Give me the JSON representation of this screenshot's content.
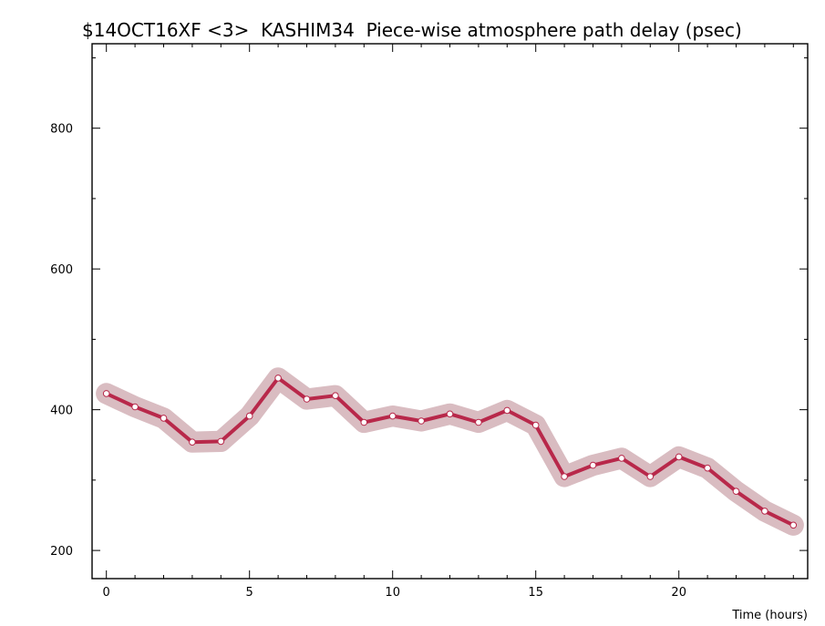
{
  "chart_data": {
    "type": "line",
    "title": "$14OCT16XF <3>  KASHIM34  Piece-wise atmosphere path delay (psec)",
    "xlabel": "Time (hours)",
    "ylabel": "",
    "xlim": [
      -0.5,
      24.5
    ],
    "ylim": [
      160,
      920
    ],
    "xticks": [
      0,
      5,
      10,
      15,
      20
    ],
    "yticks": [
      200,
      400,
      600,
      800
    ],
    "x_minor_step": 1,
    "y_minor_step": 100,
    "grid": false,
    "legend": "none",
    "series": [
      {
        "x": [
          0,
          1,
          2,
          3,
          4,
          5,
          6,
          7,
          8,
          9,
          10,
          11,
          12,
          13,
          14,
          15,
          16,
          17,
          18,
          19,
          20,
          21,
          22,
          23,
          24
        ],
        "values": [
          423,
          404,
          388,
          354,
          355,
          391,
          445,
          415,
          420,
          382,
          391,
          384,
          394,
          382,
          399,
          378,
          305,
          321,
          331,
          305,
          333,
          317,
          284,
          256,
          236
        ],
        "uncertainty": 15,
        "line_color": "#b8284a",
        "band_color": "#d9bcc1",
        "marker_fill": "#ffffff"
      }
    ]
  }
}
